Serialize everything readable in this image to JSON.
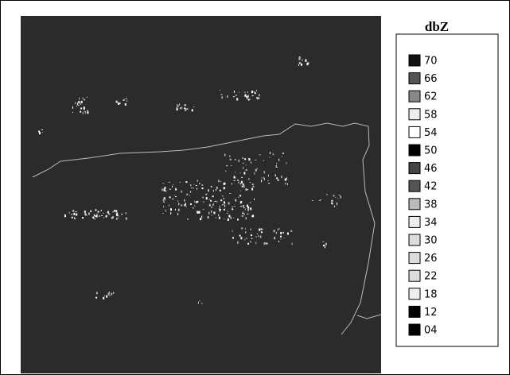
{
  "legend": {
    "title": "dbZ",
    "items": [
      {
        "label": "70",
        "color": "#111111"
      },
      {
        "label": "66",
        "color": "#555555"
      },
      {
        "label": "62",
        "color": "#888888"
      },
      {
        "label": "58",
        "color": "#eeeeee"
      },
      {
        "label": "54",
        "color": "#ffffff"
      },
      {
        "label": "50",
        "color": "#000000"
      },
      {
        "label": "46",
        "color": "#444444"
      },
      {
        "label": "42",
        "color": "#555555"
      },
      {
        "label": "38",
        "color": "#bbbbbb"
      },
      {
        "label": "34",
        "color": "#eeeeee"
      },
      {
        "label": "30",
        "color": "#dddddd"
      },
      {
        "label": "26",
        "color": "#dddddd"
      },
      {
        "label": "22",
        "color": "#dddddd"
      },
      {
        "label": "18",
        "color": "#eeeeee"
      },
      {
        "label": "12",
        "color": "#000000"
      },
      {
        "label": "04",
        "color": "#000000"
      }
    ]
  }
}
